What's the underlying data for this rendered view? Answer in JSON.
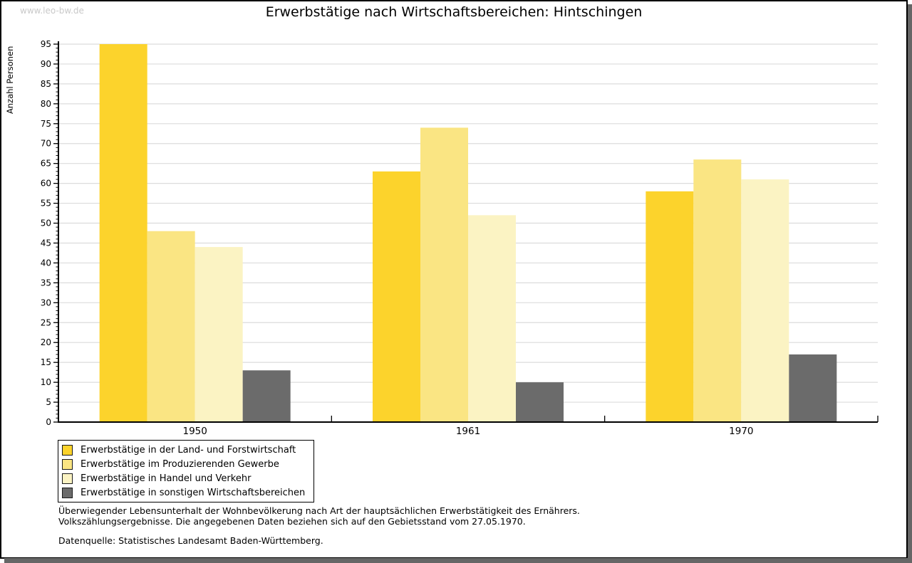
{
  "watermark": "www.leo-bw.de",
  "chart_data": {
    "type": "bar",
    "title": "Erwerbstätige nach Wirtschaftsbereichen: Hintschingen",
    "ylabel": "Anzahl Personen",
    "xlabel": "",
    "categories": [
      "1950",
      "1961",
      "1970"
    ],
    "series": [
      {
        "name": "Erwerbstätige in der Land- und Forstwirtschaft",
        "color": "#fcd32c",
        "values": [
          95,
          63,
          58
        ]
      },
      {
        "name": "Erwerbstätige im Produzierenden Gewerbe",
        "color": "#fae583",
        "values": [
          48,
          74,
          66
        ]
      },
      {
        "name": "Erwerbstätige in Handel und Verkehr",
        "color": "#fbf3c3",
        "values": [
          44,
          52,
          61
        ]
      },
      {
        "name": "Erwerbstätige in sonstigen Wirtschaftsbereichen",
        "color": "#6b6b6b",
        "values": [
          13,
          10,
          17
        ]
      }
    ],
    "ylim": [
      0,
      95
    ],
    "ytick_step": 5,
    "yminor_step": 1,
    "grid": true,
    "gridline_color": "#dcdcdc",
    "axis_color": "#000000",
    "legend_position": "bottom-left"
  },
  "footnotes": {
    "line1": "Überwiegender Lebensunterhalt der Wohnbevölkerung nach Art der hauptsächlichen Erwerbstätigkeit des Ernährers.",
    "line2": "Volkszählungsergebnisse. Die angegebenen Daten beziehen sich auf den Gebietsstand vom 27.05.1970.",
    "source": "Datenquelle: Statistisches Landesamt Baden-Württemberg."
  }
}
